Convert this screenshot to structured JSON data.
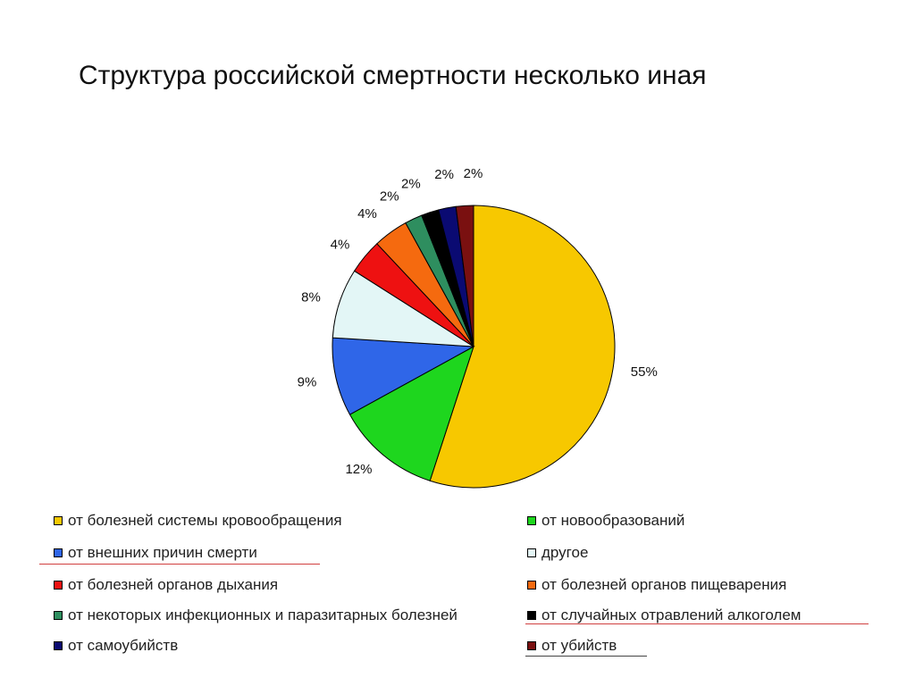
{
  "title": "Структура российской смертности несколько иная",
  "chart_data": {
    "type": "pie",
    "title": "",
    "slices": [
      {
        "label": "от болезней системы кровообращения",
        "value": 55,
        "label_text": "55%",
        "color": "#f7c800"
      },
      {
        "label": "от новообразований",
        "value": 12,
        "label_text": "12%",
        "color": "#1ed61e"
      },
      {
        "label": "от внешних причин смерти",
        "value": 9,
        "label_text": "9%",
        "color": "#2f66e8"
      },
      {
        "label": "другое",
        "value": 8,
        "label_text": "8%",
        "color": "#e3f6f6"
      },
      {
        "label": "от болезней органов дыхания",
        "value": 4,
        "label_text": "4%",
        "color": "#ee1111"
      },
      {
        "label": "от болезней органов пищеварения",
        "value": 4,
        "label_text": "4%",
        "color": "#f56a0f"
      },
      {
        "label": "от некоторых инфекционных и паразитарных болезней",
        "value": 2,
        "label_text": "2%",
        "color": "#2e8e5f"
      },
      {
        "label": "от случайных отравлений алкоголем",
        "value": 2,
        "label_text": "2%",
        "color": "#000000"
      },
      {
        "label": "от самоубийств",
        "value": 2,
        "label_text": "2%",
        "color": "#0a0a72"
      },
      {
        "label": "от убийств",
        "value": 2,
        "label_text": "2%",
        "color": "#7a1010"
      }
    ],
    "legend_position": "bottom",
    "legend_columns": 2
  }
}
